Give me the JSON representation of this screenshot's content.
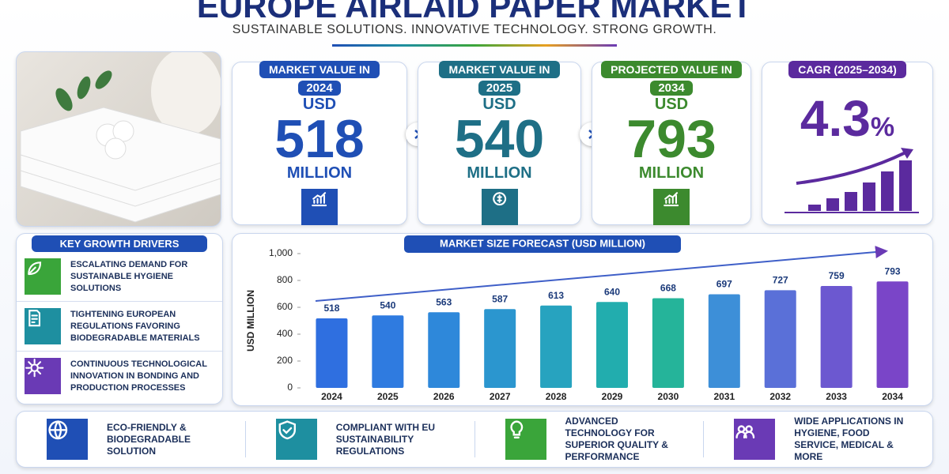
{
  "header": {
    "title": "EUROPE AIRLAID PAPER MARKET",
    "subtitle": "SUSTAINABLE SOLUTIONS. INNOVATIVE TECHNOLOGY. STRONG GROWTH."
  },
  "cards": [
    {
      "label": "MARKET VALUE IN",
      "year": "2024",
      "currency": "USD",
      "value": 518,
      "unit": "MILLION",
      "color": "#1f4fb5"
    },
    {
      "label": "MARKET VALUE IN",
      "year": "2025",
      "currency": "USD",
      "value": 540,
      "unit": "MILLION",
      "color": "#1e6f86"
    },
    {
      "label": "PROJECTED VALUE IN",
      "year": "2034",
      "currency": "USD",
      "value": 793,
      "unit": "MILLION",
      "color": "#3c8a2e"
    }
  ],
  "cagr": {
    "label": "CAGR (2025–2034)",
    "value": "4.3",
    "unit": "%",
    "color": "#5b2a9e"
  },
  "drivers": {
    "title": "KEY GROWTH DRIVERS",
    "items": [
      {
        "text": "ESCALATING DEMAND FOR SUSTAINABLE HYGIENE SOLUTIONS",
        "color": "#3aa53a"
      },
      {
        "text": "TIGHTENING EUROPEAN REGULATIONS FAVORING BIODEGRADABLE MATERIALS",
        "color": "#1e8fa0"
      },
      {
        "text": "CONTINUOUS TECHNOLOGICAL INNOVATION IN BONDING AND PRODUCTION PROCESSES",
        "color": "#6a3ab5"
      }
    ]
  },
  "chart_data": {
    "type": "bar",
    "title": "MARKET SIZE FORECAST (USD MILLION)",
    "y_label": "USD MILLION",
    "categories": [
      "2024",
      "2025",
      "2026",
      "2027",
      "2028",
      "2029",
      "2030",
      "2031",
      "2032",
      "2033",
      "2034"
    ],
    "values": [
      518,
      540,
      563,
      587,
      613,
      640,
      668,
      697,
      727,
      759,
      793
    ],
    "colors": [
      "#2f6fe0",
      "#2f7be0",
      "#2e88da",
      "#2b96cf",
      "#27a3bf",
      "#22adae",
      "#25b49a",
      "#3d8fd8",
      "#5a70d8",
      "#6c58d0",
      "#7a45c8"
    ],
    "ylim": [
      0,
      1000
    ],
    "yticks": [
      0,
      200,
      400,
      600,
      800,
      {
        "value": 1000,
        "label": "1,000"
      }
    ],
    "grid": false
  },
  "features": [
    {
      "text": "ECO-FRIENDLY & BIODEGRADABLE SOLUTION",
      "color": "#1f4fb5"
    },
    {
      "text": "COMPLIANT WITH EU SUSTAINABILITY REGULATIONS",
      "color": "#1e8fa0"
    },
    {
      "text": "ADVANCED TECHNOLOGY FOR SUPERIOR QUALITY & PERFORMANCE",
      "color": "#3aa53a"
    },
    {
      "text": "WIDE APPLICATIONS IN HYGIENE, FOOD SERVICE, MEDICAL & MORE",
      "color": "#6a3ab5"
    }
  ]
}
